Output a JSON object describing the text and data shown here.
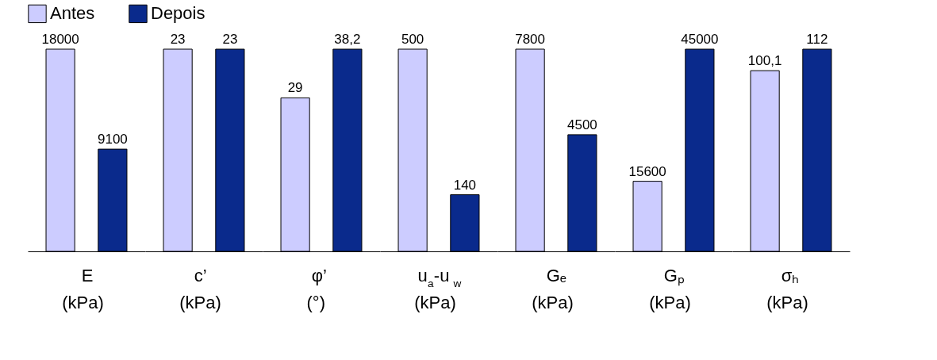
{
  "chart_data": [
    {
      "type": "bar",
      "categories": [
        "E\n(kPa)"
      ],
      "series": [
        {
          "name": "Antes",
          "color": "#ccccff",
          "values": [
            18000
          ],
          "value_labels": [
            "18000"
          ]
        },
        {
          "name": "Depois",
          "color": "#0a2a8c",
          "values": [
            9100
          ],
          "value_labels": [
            "9100"
          ]
        }
      ],
      "legend": "top"
    },
    {
      "type": "bar",
      "categories": [
        "c’\n(kPa)"
      ],
      "series": [
        {
          "name": "Antes",
          "color": "#ccccff",
          "values": [
            23
          ],
          "value_labels": [
            "23"
          ]
        },
        {
          "name": "Depois",
          "color": "#0a2a8c",
          "values": [
            23
          ],
          "value_labels": [
            "23"
          ]
        }
      ]
    },
    {
      "type": "bar",
      "categories": [
        "φ’\n(°)"
      ],
      "series": [
        {
          "name": "Antes",
          "color": "#ccccff",
          "values": [
            29
          ],
          "value_labels": [
            "29"
          ]
        },
        {
          "name": "Depois",
          "color": "#0a2a8c",
          "values": [
            38.2
          ],
          "value_labels": [
            "38,2"
          ]
        }
      ]
    },
    {
      "type": "bar",
      "categories": [
        "u$_{a}$-u$_{w}$\n(kPa)"
      ],
      "series": [
        {
          "name": "Antes",
          "color": "#ccccff",
          "values": [
            500
          ],
          "value_labels": [
            "500"
          ]
        },
        {
          "name": "Depois",
          "color": "#0a2a8c",
          "values": [
            140
          ],
          "value_labels": [
            "140"
          ]
        }
      ]
    },
    {
      "type": "bar",
      "categories": [
        "Gₑ\n(kPa)"
      ],
      "series": [
        {
          "name": "Antes",
          "color": "#ccccff",
          "values": [
            7800
          ],
          "value_labels": [
            "7800"
          ]
        },
        {
          "name": "Depois",
          "color": "#0a2a8c",
          "values": [
            4500
          ],
          "value_labels": [
            "4500"
          ]
        }
      ]
    },
    {
      "type": "bar",
      "categories": [
        "Gₚ\n(kPa)"
      ],
      "series": [
        {
          "name": "Antes",
          "color": "#ccccff",
          "values": [
            15600
          ],
          "value_labels": [
            "15600"
          ]
        },
        {
          "name": "Depois",
          "color": "#0a2a8c",
          "values": [
            45000
          ],
          "value_labels": [
            "45000"
          ]
        }
      ]
    },
    {
      "type": "bar",
      "categories": [
        "σₕ\n(kPa)"
      ],
      "series": [
        {
          "name": "Antes",
          "color": "#ccccff",
          "values": [
            100.1
          ],
          "value_labels": [
            "100,1"
          ]
        },
        {
          "name": "Depois",
          "color": "#0a2a8c",
          "values": [
            112
          ],
          "value_labels": [
            "112"
          ]
        }
      ]
    }
  ]
}
